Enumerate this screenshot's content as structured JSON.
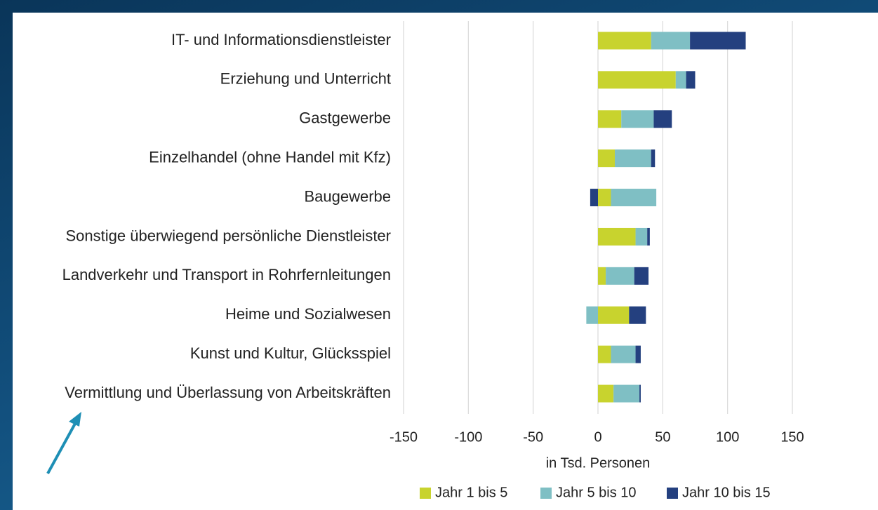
{
  "chart_data": {
    "type": "bar",
    "orientation": "horizontal",
    "stacked": true,
    "categories": [
      "IT- und Informationsdienstleister",
      "Erziehung und Unterricht",
      "Gastgewerbe",
      "Einzelhandel (ohne Handel mit Kfz)",
      "Baugewerbe",
      "Sonstige überwiegend persönliche Dienstleister",
      "Landverkehr und Transport in Rohrfernleitungen",
      "Heime und Sozialwesen",
      "Kunst und Kultur, Glücksspiel",
      "Vermittlung und Überlassung von Arbeitskräften"
    ],
    "series": [
      {
        "name": "Jahr 1 bis 5",
        "color": "#c8d32e",
        "values": [
          41,
          60,
          18,
          13,
          10,
          29,
          6,
          24,
          10,
          12
        ]
      },
      {
        "name": "Jahr 5 bis 10",
        "color": "#7fbfc4",
        "values": [
          30,
          8,
          25,
          28,
          35,
          9,
          22,
          -9,
          19,
          20
        ]
      },
      {
        "name": "Jahr 10 bis 15",
        "color": "#24407f",
        "values": [
          43,
          7,
          14,
          3,
          -6,
          2,
          11,
          13,
          4,
          1
        ]
      }
    ],
    "xlabel": "in Tsd. Personen",
    "xlim": [
      -150,
      150
    ],
    "xticks": [
      -150,
      -100,
      -50,
      0,
      50,
      100,
      150
    ],
    "grid": true,
    "legend": "bottom"
  }
}
